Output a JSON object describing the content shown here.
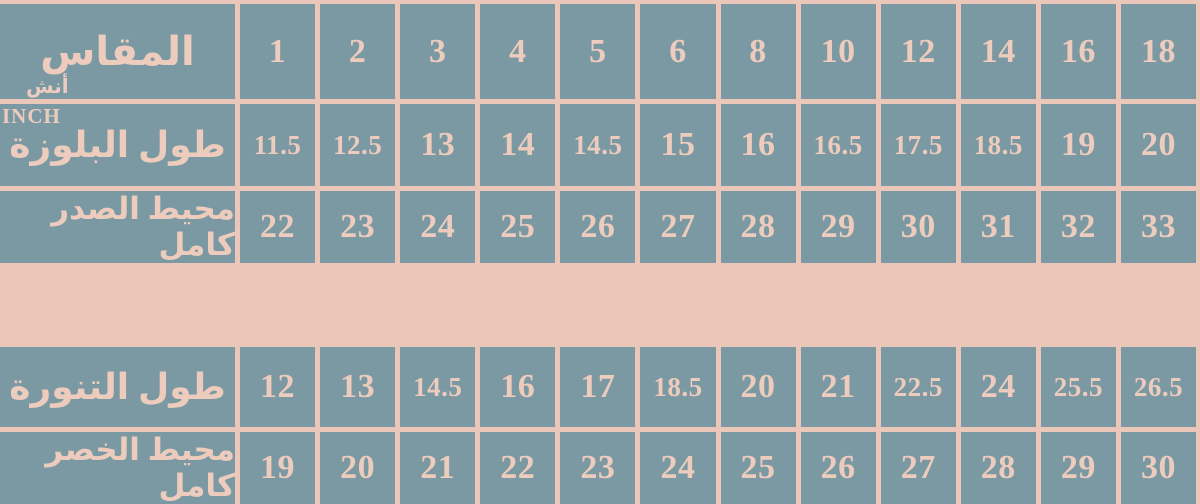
{
  "colors": {
    "teal_cell": "#7b99a2",
    "pink_background": "#ebc7b9",
    "pink_text": "#edccbe"
  },
  "chart_data": {
    "type": "table",
    "direction": "rtl",
    "unit_note_arabic": "أنش",
    "unit_note_english": "INCH",
    "header": {
      "label": "المقاس",
      "sizes": [
        "1",
        "2",
        "3",
        "4",
        "5",
        "6",
        "8",
        "10",
        "12",
        "14",
        "16",
        "18"
      ]
    },
    "rows": [
      {
        "label": "طول البلوزة",
        "values": [
          "11.5",
          "12.5",
          "13",
          "14",
          "14.5",
          "15",
          "16",
          "16.5",
          "17.5",
          "18.5",
          "19",
          "20"
        ]
      },
      {
        "label": "محيط الصدر كامل",
        "values": [
          "22",
          "23",
          "24",
          "25",
          "26",
          "27",
          "28",
          "29",
          "30",
          "31",
          "32",
          "33"
        ]
      },
      {
        "label": "طول التنورة",
        "values": [
          "12",
          "13",
          "14.5",
          "16",
          "17",
          "18.5",
          "20",
          "21",
          "22.5",
          "24",
          "25.5",
          "26.5"
        ]
      },
      {
        "label": "محيط الخصر كامل",
        "values": [
          "19",
          "20",
          "21",
          "22",
          "23",
          "24",
          "25",
          "26",
          "27",
          "28",
          "29",
          "30"
        ]
      }
    ]
  }
}
